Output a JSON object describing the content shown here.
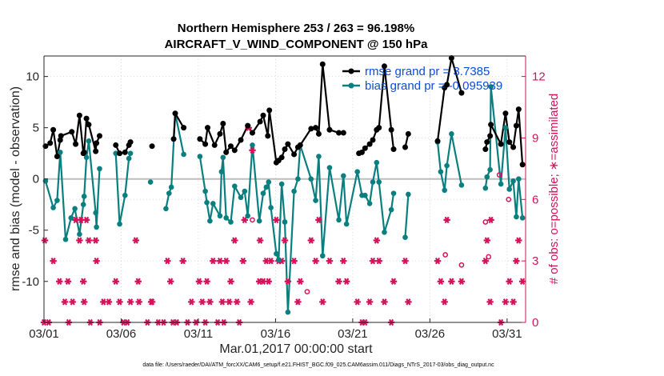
{
  "chart_data": {
    "type": "line",
    "title": "Northern Hemisphere 253 / 263 = 96.198%",
    "subtitle": "AIRCRAFT_V_WIND_COMPONENT @ 150 hPa",
    "xlabel": "Mar.01,2017 00:00:00 start",
    "ylabel": "rmse and bias (model - observation)",
    "y2label": "# of obs: o=possible; ∗=assimilated",
    "footnote": "data file: /Users/raeder/DAI/ATM_forcXX/CAM6_setup/f.e21.FHIST_BGC.f09_025.CAM6assim.011/Diags_NTrS_2017-03/obs_diag_output.nc",
    "xlim": [
      1,
      32.2
    ],
    "ylim": [
      -14,
      12
    ],
    "y2lim": [
      0,
      13
    ],
    "x_ticks": [
      1,
      6,
      11,
      16,
      21,
      26,
      31
    ],
    "x_tick_labels": [
      "03/01",
      "03/06",
      "03/11",
      "03/16",
      "03/21",
      "03/26",
      "03/31"
    ],
    "y_ticks": [
      -10,
      -5,
      0,
      5,
      10
    ],
    "y2_ticks": [
      0,
      3,
      6,
      9,
      12
    ],
    "zero_line": 0,
    "legend": {
      "location": "top-right",
      "entries": [
        "rmse grand pr = 3.7385",
        "bias grand pr = -0.095939"
      ]
    },
    "colors": {
      "rmse": "#000000",
      "bias": "#0a7f80",
      "obs": "#d6115a",
      "legend_text": "#0a4ed9",
      "zero_line": "#bdbdbd"
    },
    "series": [
      {
        "name": "rmse",
        "points": [
          [
            1.1,
            3.2
          ],
          [
            1.4,
            3.5
          ],
          [
            1.6,
            4.8
          ],
          [
            1.85,
            2.2
          ],
          [
            2.05,
            3.8
          ],
          [
            2.1,
            4.2
          ],
          [
            2.8,
            4.6
          ],
          [
            3.05,
            3.4
          ],
          [
            3.3,
            6.2
          ],
          [
            3.55,
            2.5
          ],
          [
            3.6,
            2.6
          ],
          [
            3.75,
            5.9
          ],
          [
            3.9,
            5.3
          ],
          [
            4.35,
            2.7
          ],
          [
            4.4,
            3.5
          ],
          [
            4.6,
            4.2
          ],
          [
            5.65,
            3.3
          ],
          [
            5.9,
            2.5
          ],
          [
            6.25,
            2.6
          ],
          [
            6.5,
            3.3
          ],
          [
            6.6,
            3.6
          ],
          [
            8.0,
            3.2
          ],
          [
            9.4,
            3.9
          ],
          [
            9.5,
            6.4
          ],
          [
            10.05,
            5.0
          ],
          [
            11.1,
            3.9
          ],
          [
            11.45,
            3.4
          ],
          [
            11.6,
            5.0
          ],
          [
            12.05,
            3.3
          ],
          [
            12.4,
            4.4
          ],
          [
            12.6,
            5.4
          ],
          [
            12.8,
            2.6
          ],
          [
            13.1,
            3.2
          ],
          [
            13.35,
            2.8
          ],
          [
            13.75,
            3.8
          ],
          [
            14.2,
            5.2
          ],
          [
            14.5,
            4.5
          ],
          [
            15.0,
            5.6
          ],
          [
            15.2,
            6.2
          ],
          [
            15.5,
            4.2
          ],
          [
            15.6,
            6.7
          ],
          [
            16.05,
            1.6
          ],
          [
            16.2,
            1.8
          ],
          [
            16.4,
            2.1
          ],
          [
            16.6,
            2.9
          ],
          [
            16.8,
            3.4
          ],
          [
            17.2,
            2.4
          ],
          [
            17.45,
            3.1
          ],
          [
            17.6,
            3.3
          ],
          [
            18.3,
            4.9
          ],
          [
            18.6,
            5.0
          ],
          [
            18.8,
            4.4
          ],
          [
            19.05,
            11.2
          ],
          [
            19.5,
            4.8
          ],
          [
            20.1,
            4.5
          ],
          [
            20.4,
            4.5
          ],
          [
            21.4,
            2.5
          ],
          [
            21.6,
            2.6
          ],
          [
            21.8,
            3.0
          ],
          [
            22.1,
            3.4
          ],
          [
            22.3,
            3.8
          ],
          [
            22.55,
            4.8
          ],
          [
            22.7,
            5.0
          ],
          [
            23.05,
            11.0
          ],
          [
            23.5,
            4.8
          ],
          [
            23.65,
            2.9
          ],
          [
            24.4,
            3.1
          ],
          [
            24.6,
            4.4
          ],
          [
            26.5,
            3.7
          ],
          [
            26.95,
            8.9
          ],
          [
            27.1,
            9.2
          ],
          [
            27.4,
            11.8
          ],
          [
            28.05,
            8.4
          ],
          [
            29.6,
            2.9
          ],
          [
            29.7,
            3.6
          ],
          [
            29.9,
            4.2
          ],
          [
            29.95,
            5.3
          ],
          [
            30.6,
            3.4
          ],
          [
            30.9,
            6.4
          ],
          [
            31.15,
            3.6
          ],
          [
            31.4,
            3.1
          ],
          [
            31.6,
            5.2
          ],
          [
            31.75,
            6.8
          ],
          [
            32.0,
            1.4
          ]
        ]
      },
      {
        "name": "bias",
        "points": [
          [
            1.1,
            -0.2
          ],
          [
            1.6,
            -2.8
          ],
          [
            1.85,
            -2.1
          ],
          [
            2.05,
            2.6
          ],
          [
            2.4,
            -5.9
          ],
          [
            2.75,
            -3.8
          ],
          [
            3.0,
            -2.9
          ],
          [
            3.3,
            -5.4
          ],
          [
            3.55,
            -2.5
          ],
          [
            3.6,
            -1.7
          ],
          [
            3.75,
            2.1
          ],
          [
            3.9,
            3.7
          ],
          [
            4.35,
            -3.3
          ],
          [
            4.4,
            -4.7
          ],
          [
            4.6,
            1.0
          ],
          [
            5.65,
            2.5
          ],
          [
            5.9,
            -4.4
          ],
          [
            6.25,
            -1.6
          ],
          [
            6.5,
            2.0
          ],
          [
            6.6,
            2.5
          ],
          [
            7.9,
            -0.3
          ],
          [
            8.9,
            -2.9
          ],
          [
            9.1,
            -1.4
          ],
          [
            9.25,
            -0.8
          ],
          [
            9.5,
            6.4
          ],
          [
            10.05,
            2.4
          ],
          [
            11.1,
            2.2
          ],
          [
            11.45,
            -1.2
          ],
          [
            11.55,
            -2.3
          ],
          [
            11.75,
            -4.1
          ],
          [
            11.95,
            -2.4
          ],
          [
            12.4,
            -3.6
          ],
          [
            12.5,
            0.7
          ],
          [
            12.6,
            2.1
          ],
          [
            12.8,
            -3.8
          ],
          [
            13.1,
            -4.2
          ],
          [
            13.35,
            -0.7
          ],
          [
            13.75,
            -1.8
          ],
          [
            14.0,
            -1.2
          ],
          [
            14.2,
            -3.6
          ],
          [
            14.5,
            3.3
          ],
          [
            14.95,
            -4.1
          ],
          [
            15.2,
            -1.4
          ],
          [
            15.4,
            -0.8
          ],
          [
            15.55,
            -0.3
          ],
          [
            15.7,
            -2.8
          ],
          [
            16.05,
            -7.3
          ],
          [
            16.2,
            -7.9
          ],
          [
            16.4,
            -0.5
          ],
          [
            16.6,
            -4.2
          ],
          [
            16.8,
            -13.0
          ],
          [
            17.2,
            -1.2
          ],
          [
            17.45,
            0.0
          ],
          [
            17.6,
            3.3
          ],
          [
            18.3,
            0.0
          ],
          [
            18.6,
            -2.1
          ],
          [
            18.8,
            2.2
          ],
          [
            19.05,
            -7.5
          ],
          [
            19.5,
            1.1
          ],
          [
            20.1,
            -4.0
          ],
          [
            20.4,
            0.3
          ],
          [
            20.6,
            -4.4
          ],
          [
            21.3,
            0.7
          ],
          [
            21.6,
            -1.6
          ],
          [
            21.8,
            -1.6
          ],
          [
            22.1,
            -2.4
          ],
          [
            22.3,
            -0.3
          ],
          [
            22.55,
            1.6
          ],
          [
            22.7,
            -0.3
          ],
          [
            23.05,
            -5.2
          ],
          [
            23.5,
            -3.0
          ],
          [
            23.65,
            -1.4
          ],
          [
            24.4,
            -5.7
          ],
          [
            24.6,
            -1.5
          ],
          [
            26.5,
            3.6
          ],
          [
            26.7,
            0.7
          ],
          [
            26.95,
            -1.1
          ],
          [
            27.1,
            1.3
          ],
          [
            27.4,
            4.4
          ],
          [
            28.05,
            -0.6
          ],
          [
            29.6,
            -0.9
          ],
          [
            29.7,
            0.2
          ],
          [
            29.9,
            0.9
          ],
          [
            29.95,
            9.0
          ],
          [
            30.6,
            -0.5
          ],
          [
            30.9,
            5.0
          ],
          [
            31.15,
            -1.0
          ],
          [
            31.4,
            -0.2
          ],
          [
            31.6,
            -3.7
          ],
          [
            31.75,
            0.0
          ],
          [
            32.0,
            -3.8
          ]
        ]
      },
      {
        "name": "obs_possible",
        "points": [
          [
            14.5,
            5.0
          ],
          [
            18.05,
            1.5
          ],
          [
            27.0,
            3.3
          ],
          [
            28.05,
            2.8
          ],
          [
            29.6,
            4.9
          ],
          [
            29.8,
            3.2
          ],
          [
            30.5,
            7.2
          ],
          [
            31.1,
            6.0
          ]
        ]
      },
      {
        "name": "obs_assimilated",
        "points": [
          [
            1.0,
            0
          ],
          [
            1.3,
            0
          ],
          [
            1.05,
            4
          ],
          [
            1.6,
            3
          ],
          [
            2.0,
            2
          ],
          [
            2.35,
            1
          ],
          [
            2.55,
            2
          ],
          [
            2.85,
            1
          ],
          [
            2.6,
            0
          ],
          [
            3.05,
            5
          ],
          [
            3.3,
            4
          ],
          [
            3.4,
            5
          ],
          [
            3.55,
            2
          ],
          [
            3.6,
            1
          ],
          [
            3.75,
            5
          ],
          [
            3.9,
            4
          ],
          [
            4.0,
            0
          ],
          [
            4.35,
            4
          ],
          [
            4.4,
            3
          ],
          [
            4.6,
            0
          ],
          [
            4.85,
            1
          ],
          [
            5.2,
            1
          ],
          [
            5.65,
            2
          ],
          [
            5.9,
            1
          ],
          [
            6.15,
            0
          ],
          [
            6.4,
            0
          ],
          [
            6.6,
            1
          ],
          [
            6.95,
            4
          ],
          [
            7.1,
            2
          ],
          [
            7.15,
            1
          ],
          [
            7.7,
            0
          ],
          [
            7.95,
            1
          ],
          [
            8.0,
            1
          ],
          [
            8.4,
            0
          ],
          [
            8.75,
            0
          ],
          [
            9.0,
            3
          ],
          [
            9.2,
            2
          ],
          [
            9.35,
            0
          ],
          [
            9.6,
            0
          ],
          [
            10.0,
            3
          ],
          [
            10.3,
            0
          ],
          [
            10.55,
            1
          ],
          [
            10.85,
            0
          ],
          [
            11.05,
            2
          ],
          [
            11.25,
            1
          ],
          [
            11.45,
            0
          ],
          [
            11.55,
            2
          ],
          [
            11.75,
            1
          ],
          [
            11.95,
            3
          ],
          [
            12.25,
            0
          ],
          [
            12.4,
            3
          ],
          [
            12.55,
            1
          ],
          [
            12.65,
            0
          ],
          [
            12.8,
            3
          ],
          [
            13.0,
            1
          ],
          [
            13.1,
            2
          ],
          [
            13.35,
            4
          ],
          [
            13.5,
            1
          ],
          [
            13.65,
            0
          ],
          [
            13.9,
            3
          ],
          [
            14.0,
            5
          ],
          [
            14.25,
            9.5
          ],
          [
            14.4,
            1
          ],
          [
            14.5,
            8.4
          ],
          [
            14.95,
            2
          ],
          [
            15.0,
            4
          ],
          [
            15.2,
            2
          ],
          [
            15.4,
            3
          ],
          [
            15.55,
            2
          ],
          [
            15.7,
            3
          ],
          [
            16.05,
            5
          ],
          [
            16.2,
            3
          ],
          [
            16.4,
            3
          ],
          [
            16.6,
            4
          ],
          [
            16.8,
            2
          ],
          [
            17.2,
            3
          ],
          [
            17.45,
            1
          ],
          [
            17.6,
            2
          ],
          [
            18.3,
            4
          ],
          [
            18.6,
            3
          ],
          [
            18.8,
            5
          ],
          [
            19.05,
            1
          ],
          [
            19.5,
            3
          ],
          [
            20.1,
            2
          ],
          [
            20.4,
            3
          ],
          [
            20.6,
            2
          ],
          [
            21.3,
            1
          ],
          [
            21.6,
            0
          ],
          [
            21.8,
            0
          ],
          [
            22.1,
            1
          ],
          [
            22.3,
            3
          ],
          [
            22.55,
            4
          ],
          [
            22.7,
            3
          ],
          [
            23.05,
            1
          ],
          [
            23.5,
            0
          ],
          [
            23.65,
            2
          ],
          [
            24.4,
            3
          ],
          [
            24.6,
            1
          ],
          [
            26.5,
            3
          ],
          [
            26.7,
            2
          ],
          [
            26.95,
            1
          ],
          [
            27.1,
            5
          ],
          [
            27.4,
            2
          ],
          [
            28.05,
            2
          ],
          [
            29.6,
            3
          ],
          [
            29.7,
            4
          ],
          [
            29.9,
            1
          ],
          [
            29.95,
            5
          ],
          [
            30.6,
            0
          ],
          [
            30.9,
            1
          ],
          [
            31.15,
            2
          ],
          [
            31.4,
            1
          ],
          [
            31.6,
            3
          ],
          [
            31.75,
            4
          ],
          [
            32.0,
            2
          ]
        ]
      }
    ]
  }
}
